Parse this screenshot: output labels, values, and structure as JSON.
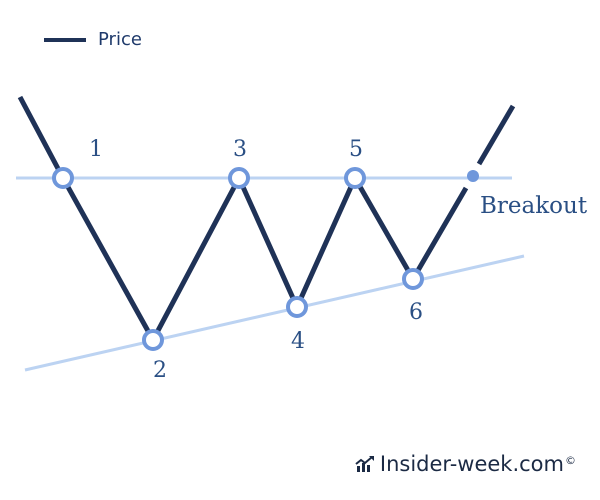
{
  "legend": {
    "price_label": "Price"
  },
  "pattern": {
    "points": [
      {
        "id": "1",
        "label": "1"
      },
      {
        "id": "2",
        "label": "2"
      },
      {
        "id": "3",
        "label": "3"
      },
      {
        "id": "4",
        "label": "4"
      },
      {
        "id": "5",
        "label": "5"
      },
      {
        "id": "6",
        "label": "6"
      }
    ],
    "breakout_label": "Breakout"
  },
  "watermark": {
    "text": "Insider-week.com",
    "symbol": "©"
  },
  "colors": {
    "price_line": "#1f3257",
    "trend_lines": "#bcd3f2",
    "marker_ring": "#6f97db",
    "label_text": "#2a4f84"
  }
}
